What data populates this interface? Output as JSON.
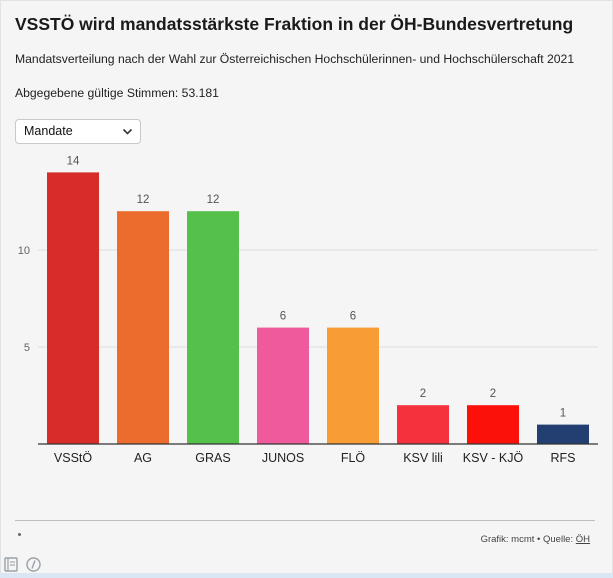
{
  "header": {
    "title": "VSSTÖ wird mandatsstärkste Fraktion in der ÖH-Bundesvertretung",
    "subtitle": "Mandatsverteilung nach der Wahl zur Österreichischen Hochschülerinnen- und Hochschülerschaft 2021",
    "votes": "Abgegebene gültige Stimmen: 53.181"
  },
  "controls": {
    "select_value": "Mandate"
  },
  "chart_data": {
    "type": "bar",
    "categories": [
      "VSStÖ",
      "AG",
      "GRAS",
      "JUNOS",
      "FLÖ",
      "KSV lili",
      "KSV - KJÖ",
      "RFS"
    ],
    "values": [
      14,
      12,
      12,
      6,
      6,
      2,
      2,
      1
    ],
    "colors": [
      "#d62d2a",
      "#ec6c2d",
      "#55c04a",
      "#ef5a9c",
      "#f89c35",
      "#f4313c",
      "#fb1109",
      "#233f72"
    ],
    "yticks": [
      5,
      10
    ],
    "ylim": [
      0,
      15
    ],
    "grid": true,
    "data_labels": true
  },
  "footer": {
    "credit": "Grafik: mcmt • Quelle: ",
    "source": "ÖH"
  },
  "icons": [
    "book-icon",
    "code-icon"
  ]
}
